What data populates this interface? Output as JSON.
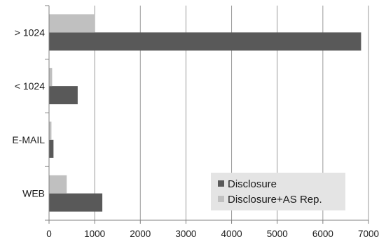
{
  "chart_data": {
    "type": "bar",
    "orientation": "horizontal",
    "categories": [
      "> 1024",
      "< 1024",
      "E-MAIL",
      "WEB"
    ],
    "series": [
      {
        "name": "Disclosure",
        "color": "#595959",
        "values": [
          6830,
          620,
          90,
          1160
        ]
      },
      {
        "name": "Disclosure+AS Rep.",
        "color": "#c0c0c0",
        "values": [
          1000,
          60,
          45,
          380
        ]
      }
    ],
    "xlim": [
      0,
      7000
    ],
    "xticks": [
      "0",
      "1000",
      "2000",
      "3000",
      "4000",
      "5000",
      "6000",
      "7000"
    ],
    "grid": true,
    "legend": "bottom-right"
  }
}
